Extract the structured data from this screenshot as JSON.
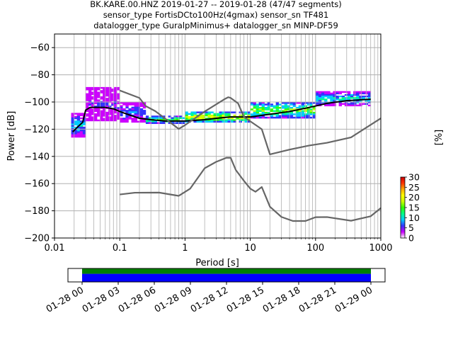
{
  "title_lines": [
    "BK.KARE.00.HNZ   2019-01-27 -- 2019-01-28  (47/47 segments)",
    "sensor_type FortisDCto100Hz(4gmax) sensor_sn TF481",
    "datalogger_type GuralpMinimus+ datalogger_sn MINP-DF59"
  ],
  "chart_data": {
    "type": "heatmap",
    "xlabel": "Period [s]",
    "ylabel": "Power [dB]",
    "xscale": "log",
    "xlim": [
      0.01,
      1000
    ],
    "ylim": [
      -200,
      -50
    ],
    "x_tick_labels": [
      "0.01",
      "0.1",
      "1",
      "10",
      "100",
      "1000"
    ],
    "x_ticks": [
      0.01,
      0.1,
      1,
      10,
      100,
      1000
    ],
    "y_ticks": [
      -60,
      -80,
      -100,
      -120,
      -140,
      -160,
      -180,
      -200
    ],
    "grid": true,
    "colorbar": {
      "label": "[%]",
      "range": [
        0,
        30
      ],
      "ticks": [
        0,
        5,
        10,
        15,
        20,
        25,
        30
      ],
      "colors": [
        "#ffffff",
        "#cc00ff",
        "#3333ff",
        "#00ccff",
        "#00ff88",
        "#33ff00",
        "#ccff00",
        "#ffff00",
        "#ffaa00",
        "#ff3300",
        "#cc0000"
      ]
    },
    "series": [
      {
        "name": "",
        "color": "#000000",
        "x": [
          0.019,
          0.023,
          0.027,
          0.03,
          0.035,
          0.045,
          0.06,
          0.08,
          0.1,
          0.15,
          0.2,
          0.3,
          0.5,
          0.8,
          1.0,
          2.0,
          3.0,
          5.0,
          8.0,
          10,
          20,
          40,
          80,
          150,
          300,
          700
        ],
        "y": [
          -122,
          -118,
          -115,
          -106,
          -104,
          -104,
          -104,
          -105,
          -107,
          -110,
          -112,
          -113,
          -114,
          -114,
          -114,
          -113,
          -112,
          -111,
          -111,
          -111,
          -109,
          -107,
          -104,
          -101,
          -99,
          -98
        ]
      },
      {
        "name": "",
        "color": "#666666",
        "x": [
          0.1,
          0.2,
          0.25,
          0.35,
          0.5,
          0.8,
          1.0,
          2.0,
          4.0,
          4.6,
          5.0,
          6.5,
          8.0,
          15.0,
          20.0,
          40.0,
          80.0,
          150.0,
          350.0,
          1000.0
        ],
        "y": [
          -91.5,
          -97,
          -103,
          -106.7,
          -112.3,
          -119.8,
          -117,
          -107,
          -98,
          -96.5,
          -97,
          -101,
          -111,
          -120,
          -138.5,
          -135,
          -132,
          -130,
          -126,
          -112
        ]
      },
      {
        "name": "",
        "color": "#666666",
        "x": [
          0.1,
          0.17,
          0.4,
          0.8,
          1.2,
          2.0,
          3.0,
          4.3,
          5.0,
          6.0,
          8.0,
          10.0,
          12.0,
          15.0,
          20.0,
          30.0,
          45.0,
          70.0,
          100.0,
          150.0,
          350.0,
          700.0,
          1000.0
        ],
        "y": [
          -168,
          -166.7,
          -166.6,
          -169,
          -163.7,
          -148.7,
          -144,
          -141,
          -141,
          -150,
          -158,
          -163.7,
          -166,
          -162.5,
          -177,
          -184.5,
          -187.5,
          -187.5,
          -184.7,
          -184.6,
          -187.3,
          -184,
          -178
        ]
      }
    ],
    "heatmap_bands": [
      {
        "x": [
          0.018,
          0.03
        ],
        "y": [
          -126,
          -108
        ],
        "level": 8
      },
      {
        "x": [
          0.03,
          0.1
        ],
        "y": [
          -114,
          -89
        ],
        "level": 4
      },
      {
        "x": [
          0.1,
          0.25
        ],
        "y": [
          -115,
          -100
        ],
        "level": 6
      },
      {
        "x": [
          0.25,
          1.0
        ],
        "y": [
          -116,
          -110
        ],
        "level": 12
      },
      {
        "x": [
          1.0,
          10.0
        ],
        "y": [
          -115,
          -107
        ],
        "level": 18
      },
      {
        "x": [
          10.0,
          100.0
        ],
        "y": [
          -112,
          -100
        ],
        "level": 14
      },
      {
        "x": [
          100.0,
          700.0
        ],
        "y": [
          -103,
          -92
        ],
        "level": 9
      }
    ],
    "timeline": {
      "tick_labels": [
        "01-28 00",
        "01-28 03",
        "01-28 06",
        "01-28 09",
        "01-28 12",
        "01-28 15",
        "01-28 18",
        "01-28 21",
        "01-29 00"
      ],
      "coverage_start": "01-28 00",
      "coverage_end": "01-29 00",
      "colors": [
        "#008000",
        "#0000ff"
      ]
    }
  }
}
